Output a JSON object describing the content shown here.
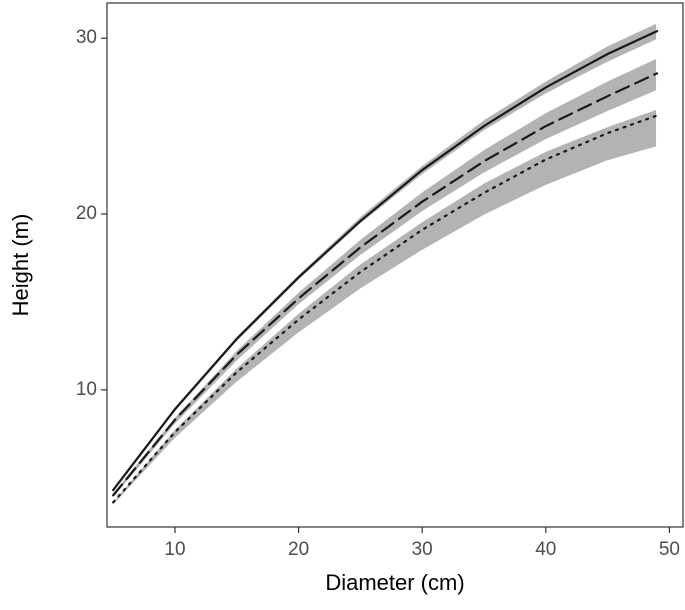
{
  "chart_data": {
    "type": "line",
    "x_label": "Diameter (cm)",
    "y_label": "Height (m)",
    "x": [
      5,
      10,
      15,
      20,
      25,
      30,
      35,
      40,
      45,
      49
    ],
    "series": [
      {
        "color": "#1a1a1a",
        "band_color": "#b3b3b3",
        "linestyle": "solid",
        "values": [
          4.3,
          8.9,
          12.9,
          16.4,
          19.6,
          22.5,
          25.0,
          27.2,
          29.1,
          30.4
        ],
        "lower": [
          4.1,
          8.7,
          12.7,
          16.2,
          19.4,
          22.2,
          24.7,
          26.8,
          28.6,
          29.9
        ],
        "upper": [
          4.5,
          9.1,
          13.1,
          16.6,
          19.9,
          22.8,
          25.4,
          27.6,
          29.6,
          30.9
        ]
      },
      {
        "color": "#1a1a1a",
        "band_color": "#b3b3b3",
        "linestyle": "dashed",
        "values": [
          4.0,
          8.3,
          12.0,
          15.2,
          18.1,
          20.7,
          23.0,
          25.0,
          26.7,
          28.0
        ],
        "lower": [
          3.8,
          8.0,
          11.6,
          14.8,
          17.6,
          20.1,
          22.3,
          24.2,
          25.8,
          27.0
        ],
        "upper": [
          4.2,
          8.5,
          12.3,
          15.6,
          18.6,
          21.3,
          23.7,
          25.8,
          27.6,
          28.9
        ]
      },
      {
        "color": "#1a1a1a",
        "band_color": "#b3b3b3",
        "linestyle": "dotted",
        "values": [
          3.6,
          7.6,
          11.0,
          14.0,
          16.7,
          19.1,
          21.2,
          23.1,
          24.6,
          25.6
        ],
        "lower": [
          3.4,
          7.2,
          10.4,
          13.2,
          15.7,
          17.9,
          19.9,
          21.6,
          23.0,
          23.8
        ],
        "upper": [
          3.7,
          7.8,
          11.3,
          14.4,
          17.2,
          19.6,
          21.8,
          23.6,
          25.0,
          26.0
        ]
      }
    ],
    "xlim": [
      4.5,
      51.1
    ],
    "xticks": [
      10,
      20,
      30,
      40,
      50
    ],
    "ylim": [
      2.2,
      32
    ],
    "yticks": [
      10,
      20,
      30
    ],
    "grid": false
  }
}
